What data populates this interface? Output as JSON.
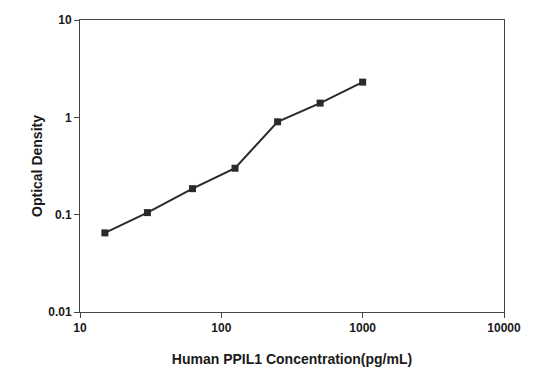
{
  "chart_data": {
    "type": "line",
    "x": [
      15,
      30,
      62.5,
      125,
      250,
      500,
      1000
    ],
    "values": [
      0.065,
      0.105,
      0.185,
      0.3,
      0.9,
      1.4,
      2.3
    ],
    "color": "#2a2a2a",
    "marker": "square",
    "line_style": "solid",
    "xlabel": "Human PPIL1 Concentration(pg/mL)",
    "ylabel": "Optical Density",
    "log": true,
    "xlim": [
      10,
      10000
    ],
    "ylim": [
      0.01,
      10
    ],
    "xticks": [
      10,
      100,
      1000,
      10000
    ],
    "yticks": [
      0.01,
      0.1,
      1,
      10
    ],
    "grid": false
  }
}
